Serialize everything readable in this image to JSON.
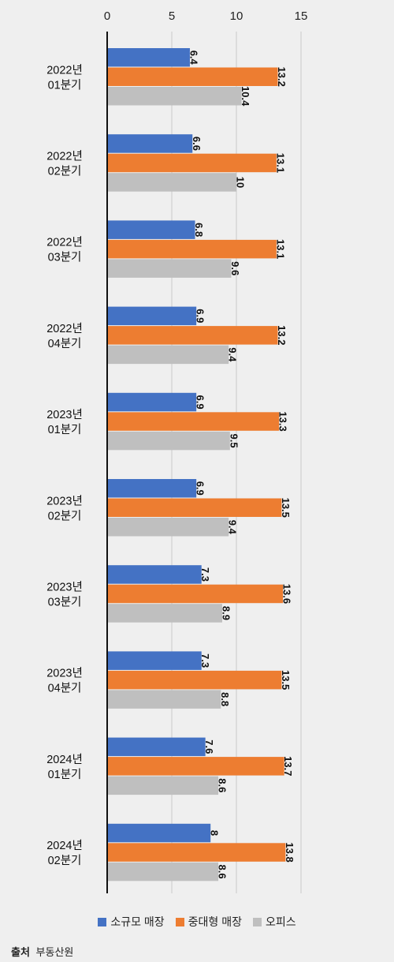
{
  "chart_data": {
    "type": "bar",
    "orientation": "horizontal",
    "categories": [
      [
        "2022년",
        "01분기"
      ],
      [
        "2022년",
        "02분기"
      ],
      [
        "2022년",
        "03분기"
      ],
      [
        "2022년",
        "04분기"
      ],
      [
        "2023년",
        "01분기"
      ],
      [
        "2023년",
        "02분기"
      ],
      [
        "2023년",
        "03분기"
      ],
      [
        "2023년",
        "04분기"
      ],
      [
        "2024년",
        "01분기"
      ],
      [
        "2024년",
        "02분기"
      ]
    ],
    "series": [
      {
        "name": "소규모 매장",
        "color": "#4472c4",
        "values": [
          6.4,
          6.6,
          6.8,
          6.9,
          6.9,
          6.9,
          7.3,
          7.3,
          7.6,
          8
        ]
      },
      {
        "name": "중대형 매장",
        "color": "#ed7d31",
        "values": [
          13.2,
          13.1,
          13.1,
          13.2,
          13.3,
          13.5,
          13.6,
          13.5,
          13.7,
          13.8
        ]
      },
      {
        "name": "오피스",
        "color": "#bfbfbf",
        "values": [
          10.4,
          10,
          9.6,
          9.4,
          9.5,
          9.4,
          8.9,
          8.8,
          8.6,
          8.6
        ]
      }
    ],
    "xlim": [
      0,
      15
    ],
    "xticks": [
      0,
      5,
      10,
      15
    ],
    "grid": true,
    "legend_position": "bottom"
  },
  "source": {
    "label": "출처",
    "text": "부동산원"
  }
}
